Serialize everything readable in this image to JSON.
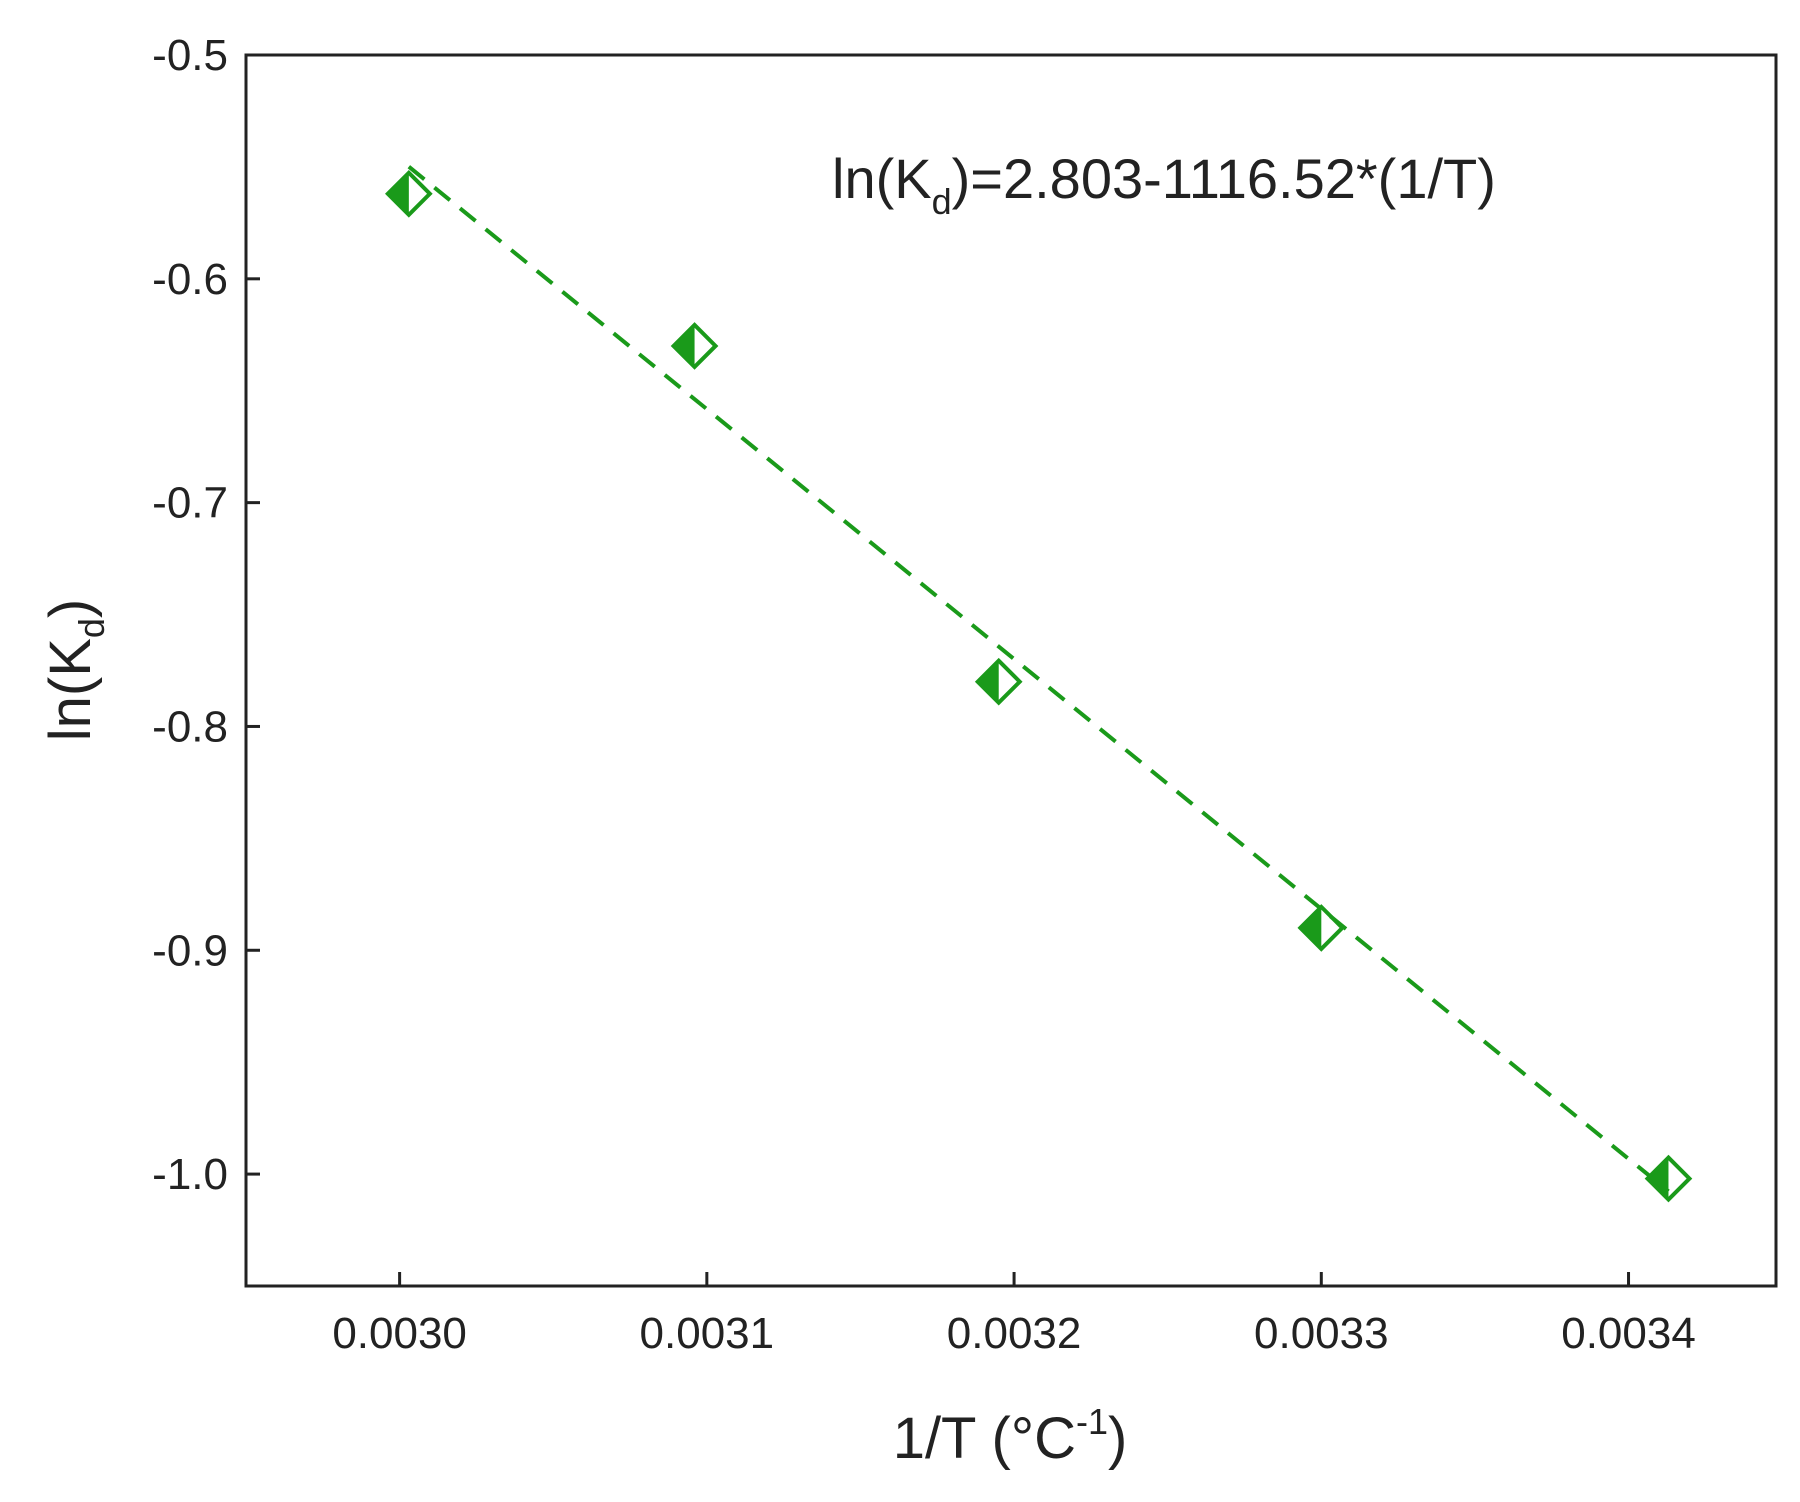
{
  "chart_data": {
    "type": "scatter",
    "title": "",
    "xlabel": "1/T (°C",
    "xlabel_sup": "-1",
    "xlabel_close": ")",
    "ylabel": "ln(K",
    "ylabel_sub": "d",
    "ylabel_close": ")",
    "xlim": [
      0.00295,
      0.003448
    ],
    "ylim": [
      -1.05,
      -0.5
    ],
    "xticks": [
      0.003,
      0.0031,
      0.0032,
      0.0033,
      0.0034
    ],
    "xtick_labels": [
      "0.0030",
      "0.0031",
      "0.0032",
      "0.0033",
      "0.0034"
    ],
    "yticks": [
      -0.5,
      -0.6,
      -0.7,
      -0.8,
      -0.9,
      -1.0
    ],
    "ytick_labels": [
      "-0.5",
      "-0.6",
      "-0.7",
      "-0.8",
      "-0.9",
      "-1.0"
    ],
    "grid": false,
    "series": [
      {
        "marker": "half-filled-diamond",
        "color": "#1a9a1a",
        "x": [
          0.003003,
          0.003096,
          0.003195,
          0.0033,
          0.003413
        ],
        "y": [
          -0.562,
          -0.63,
          -0.78,
          -0.89,
          -1.002
        ]
      }
    ],
    "fit_line": {
      "style": "dashed",
      "color": "#1a9a1a",
      "intercept": 2.803,
      "slope": -1116.52,
      "x_range": [
        0.003003,
        0.003413
      ]
    },
    "annotation": {
      "pre": "ln(K",
      "sub": "d",
      "post": ")=2.803-1116.52*(1/T)"
    }
  }
}
